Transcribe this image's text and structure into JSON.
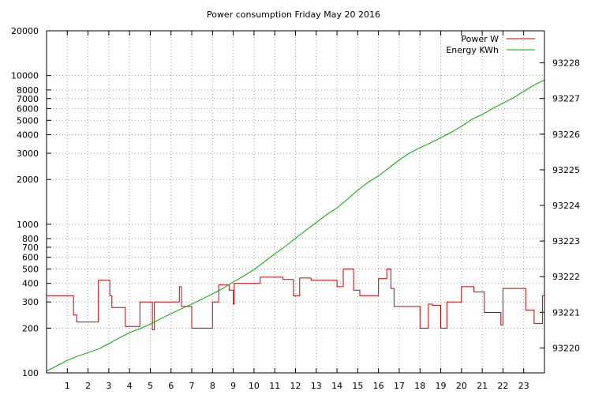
{
  "chart_data": {
    "type": "line",
    "title": "Power consumption Friday May 20 2016",
    "xlabel": "",
    "ylabel": "",
    "x_range": [
      0,
      24
    ],
    "x_ticks": [
      1,
      2,
      3,
      4,
      5,
      6,
      7,
      8,
      9,
      10,
      11,
      12,
      13,
      14,
      15,
      16,
      17,
      18,
      19,
      20,
      21,
      22,
      23
    ],
    "y_scale": "log",
    "y_range": [
      100,
      20000
    ],
    "y_ticks": [
      {
        "value": 100,
        "label": "100"
      },
      {
        "value": 200,
        "label": "200"
      },
      {
        "value": 300,
        "label": "300"
      },
      {
        "value": 400,
        "label": "400"
      },
      {
        "value": 500,
        "label": "500"
      },
      {
        "value": 600,
        "label": "600"
      },
      {
        "value": 700,
        "label": "700"
      },
      {
        "value": 800,
        "label": "800"
      },
      {
        "value": 1000,
        "label": "1000"
      },
      {
        "value": 2000,
        "label": "2000"
      },
      {
        "value": 3000,
        "label": "3000"
      },
      {
        "value": 4000,
        "label": "4000"
      },
      {
        "value": 5000,
        "label": "5000"
      },
      {
        "value": 6000,
        "label": "6000"
      },
      {
        "value": 7000,
        "label": "7000"
      },
      {
        "value": 8000,
        "label": "8000"
      },
      {
        "value": 10000,
        "label": "10000"
      },
      {
        "value": 20000,
        "label": "20000"
      }
    ],
    "y2_scale": "linear",
    "y2_range": [
      93219.3,
      93228.9
    ],
    "y2_ticks": [
      93220,
      93221,
      93222,
      93223,
      93224,
      93225,
      93226,
      93227,
      93228
    ],
    "grid": true,
    "legend_position": "top-right",
    "series": [
      {
        "name": "Power W",
        "axis": "y",
        "color": "#cc0000",
        "step": true,
        "x": [
          0,
          1.2,
          1.3,
          1.45,
          2.5,
          3.05,
          3.15,
          3.3,
          3.8,
          4.5,
          5.1,
          5.2,
          5.3,
          6.4,
          6.5,
          6.55,
          7.0,
          8.0,
          8.3,
          8.8,
          9.0,
          9.05,
          10.1,
          10.3,
          11.4,
          11.9,
          12.2,
          12.75,
          14.0,
          14.3,
          14.8,
          15.1,
          16.0,
          16.4,
          16.6,
          16.75,
          17.5,
          18.0,
          18.4,
          18.6,
          19.0,
          19.3,
          20.0,
          20.6,
          21.1,
          21.9,
          22.0,
          22.3,
          23.1,
          23.5,
          23.9,
          24.0
        ],
        "values": [
          330,
          330,
          245,
          220,
          420,
          330,
          275,
          275,
          205,
          300,
          195,
          300,
          300,
          380,
          280,
          280,
          200,
          300,
          390,
          360,
          290,
          400,
          400,
          440,
          425,
          330,
          435,
          420,
          380,
          500,
          360,
          330,
          430,
          500,
          370,
          280,
          280,
          200,
          290,
          285,
          200,
          300,
          380,
          350,
          255,
          210,
          370,
          370,
          265,
          215,
          330,
          330
        ]
      },
      {
        "name": "Energy KWh",
        "axis": "y2",
        "color": "#00aa00",
        "step": false,
        "x": [
          0,
          0.5,
          1.0,
          1.5,
          2.0,
          2.5,
          3.0,
          3.5,
          4.0,
          4.5,
          5.0,
          5.5,
          6.0,
          6.5,
          7.0,
          7.5,
          8.0,
          8.5,
          9.0,
          9.5,
          10.0,
          10.5,
          11.0,
          11.5,
          12.0,
          12.5,
          13.0,
          13.5,
          14.0,
          14.5,
          15.0,
          15.5,
          16.0,
          16.5,
          17.0,
          17.5,
          18.0,
          18.5,
          19.0,
          19.5,
          20.0,
          20.5,
          21.0,
          21.5,
          22.0,
          22.5,
          23.0,
          23.5,
          24.0
        ],
        "values": [
          93219.35,
          93219.5,
          93219.65,
          93219.77,
          93219.87,
          93219.97,
          93220.12,
          93220.28,
          93220.43,
          93220.54,
          93220.67,
          93220.82,
          93220.96,
          93221.1,
          93221.23,
          93221.37,
          93221.52,
          93221.67,
          93221.85,
          93222.02,
          93222.2,
          93222.42,
          93222.64,
          93222.85,
          93223.08,
          93223.3,
          93223.52,
          93223.74,
          93223.93,
          93224.17,
          93224.43,
          93224.65,
          93224.83,
          93225.05,
          93225.28,
          93225.47,
          93225.62,
          93225.75,
          93225.9,
          93226.05,
          93226.22,
          93226.42,
          93226.55,
          93226.72,
          93226.87,
          93227.02,
          93227.2,
          93227.38,
          93227.52
        ]
      }
    ]
  }
}
